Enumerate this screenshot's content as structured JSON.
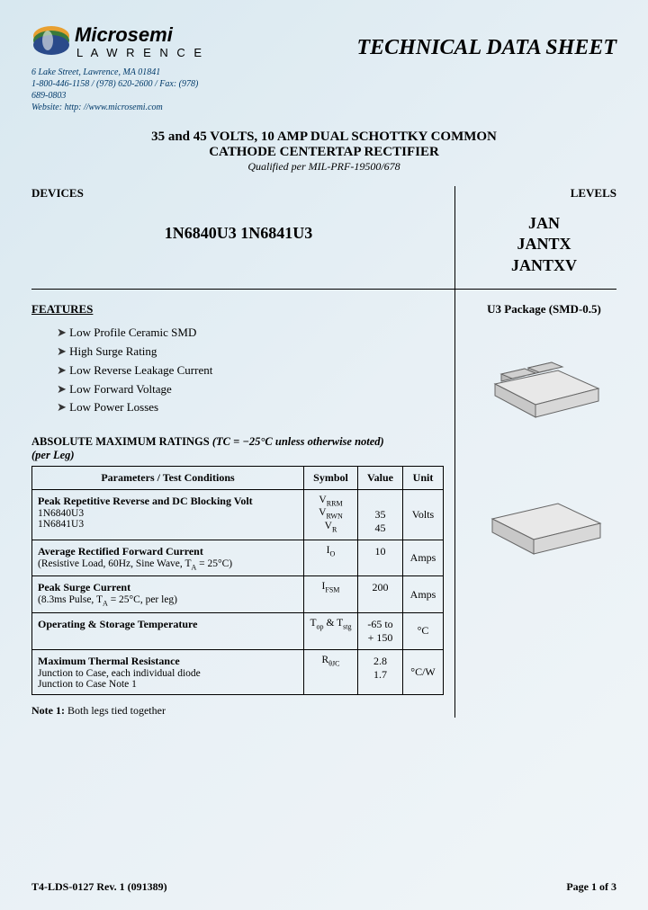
{
  "header": {
    "company": "Microsemi",
    "division": "LAWRENCE",
    "address_line1": "6 Lake Street, Lawrence, MA 01841",
    "address_line2": "1-800-446-1158 / (978) 620-2600 / Fax: (978) 689-0803",
    "address_line3": "Website: http: //www.microsemi.com",
    "doc_title": "TECHNICAL DATA SHEET"
  },
  "title": {
    "line1": "35 and 45 VOLTS, 10 AMP DUAL SCHOTTKY COMMON",
    "line2": "CATHODE CENTERTAP RECTIFIER",
    "qualified": "Qualified per MIL-PRF-19500/678"
  },
  "devices": {
    "label": "DEVICES",
    "list": "1N6840U3    1N6841U3"
  },
  "levels": {
    "label": "LEVELS",
    "items": [
      "JAN",
      "JANTX",
      "JANTXV"
    ]
  },
  "features": {
    "heading": "FEATURES",
    "items": [
      "Low Profile Ceramic SMD",
      "High Surge Rating",
      "Low Reverse Leakage Current",
      "Low Forward Voltage",
      "Low Power Losses"
    ]
  },
  "package": {
    "label": "U3 Package (SMD-0.5)"
  },
  "ratings": {
    "heading_prefix": "ABSOLUTE MAXIMUM RATINGS",
    "heading_cond": "(TC = −25°C unless otherwise noted)",
    "perleg": "(per Leg)",
    "cols": [
      "Parameters / Test Conditions",
      "Symbol",
      "Value",
      "Unit"
    ],
    "rows": [
      {
        "name": "Peak Repetitive Reverse and DC Blocking Volt",
        "subs": [
          "1N6840U3",
          "1N6841U3"
        ],
        "symbols": [
          "V<sub>RRM</sub>",
          "V<sub>RWN</sub>",
          "V<sub>R</sub>"
        ],
        "values": [
          "",
          "35",
          "45"
        ],
        "unit": "Volts"
      },
      {
        "name": "Average Rectified Forward Current",
        "subs": [
          "(Resistive Load, 60Hz, Sine Wave, T<sub>A</sub> = 25°C)"
        ],
        "symbols": [
          "I<sub>O</sub>"
        ],
        "values": [
          "10"
        ],
        "unit": "Amps"
      },
      {
        "name": "Peak Surge Current",
        "subs": [
          "(8.3ms Pulse, T<sub>A</sub> = 25°C, per leg)"
        ],
        "symbols": [
          "I<sub>FSM</sub>"
        ],
        "values": [
          "200"
        ],
        "unit": "Amps"
      },
      {
        "name": "Operating & Storage Temperature",
        "subs": [],
        "symbols": [
          "T<sub>op</sub> & T<sub>stg</sub>"
        ],
        "values": [
          "-65 to<br>+ 150"
        ],
        "unit": "°C"
      },
      {
        "name": "Maximum Thermal Resistance",
        "subs": [
          "Junction to Case, each individual diode",
          "Junction to Case Note 1"
        ],
        "symbols": [
          "R<sub>θJC</sub>"
        ],
        "values": [
          "2.8<br>1.7"
        ],
        "unit": "°C/W"
      }
    ]
  },
  "note1": {
    "label": "Note 1:",
    "text": "Both legs tied together"
  },
  "footer": {
    "left": "T4-LDS-0127 Rev. 1 (091389)",
    "right": "Page 1 of 3"
  },
  "colors": {
    "brand_blue": "#003a6a",
    "text": "#000000"
  }
}
